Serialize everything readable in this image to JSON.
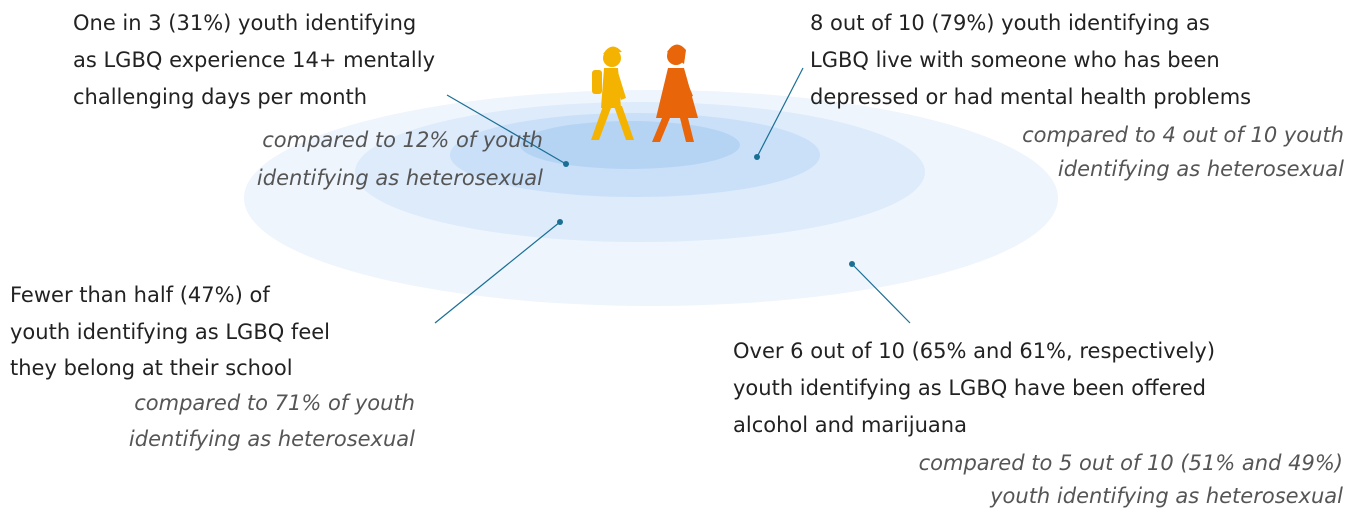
{
  "callouts": [
    {
      "lines": [
        "One in 3 (31%) youth identifying",
        "as LGBQ experience 14+ mentally",
        "challenging days per month"
      ],
      "comparison": [
        "compared to 12% of youth",
        "identifying as heterosexual"
      ]
    },
    {
      "lines": [
        "8 out of 10 (79%) youth identifying as",
        "LGBQ live with someone who has been",
        "depressed or had mental health problems"
      ],
      "comparison": [
        "compared to 4 out of 10 youth",
        "identifying as heterosexual"
      ]
    },
    {
      "lines": [
        "Fewer than half (47%) of",
        "youth identifying as LGBQ feel",
        "they belong at their school"
      ],
      "comparison": [
        "compared to 71% of youth",
        "identifying as heterosexual"
      ]
    },
    {
      "lines": [
        "Over 6 out of 10 (65% and 61%, respectively)",
        "youth identifying as LGBQ have been offered",
        "alcohol and marijuana"
      ],
      "comparison": [
        "compared to 5 out of 10 (51% and 49%)",
        "youth identifying as heterosexual"
      ]
    }
  ]
}
